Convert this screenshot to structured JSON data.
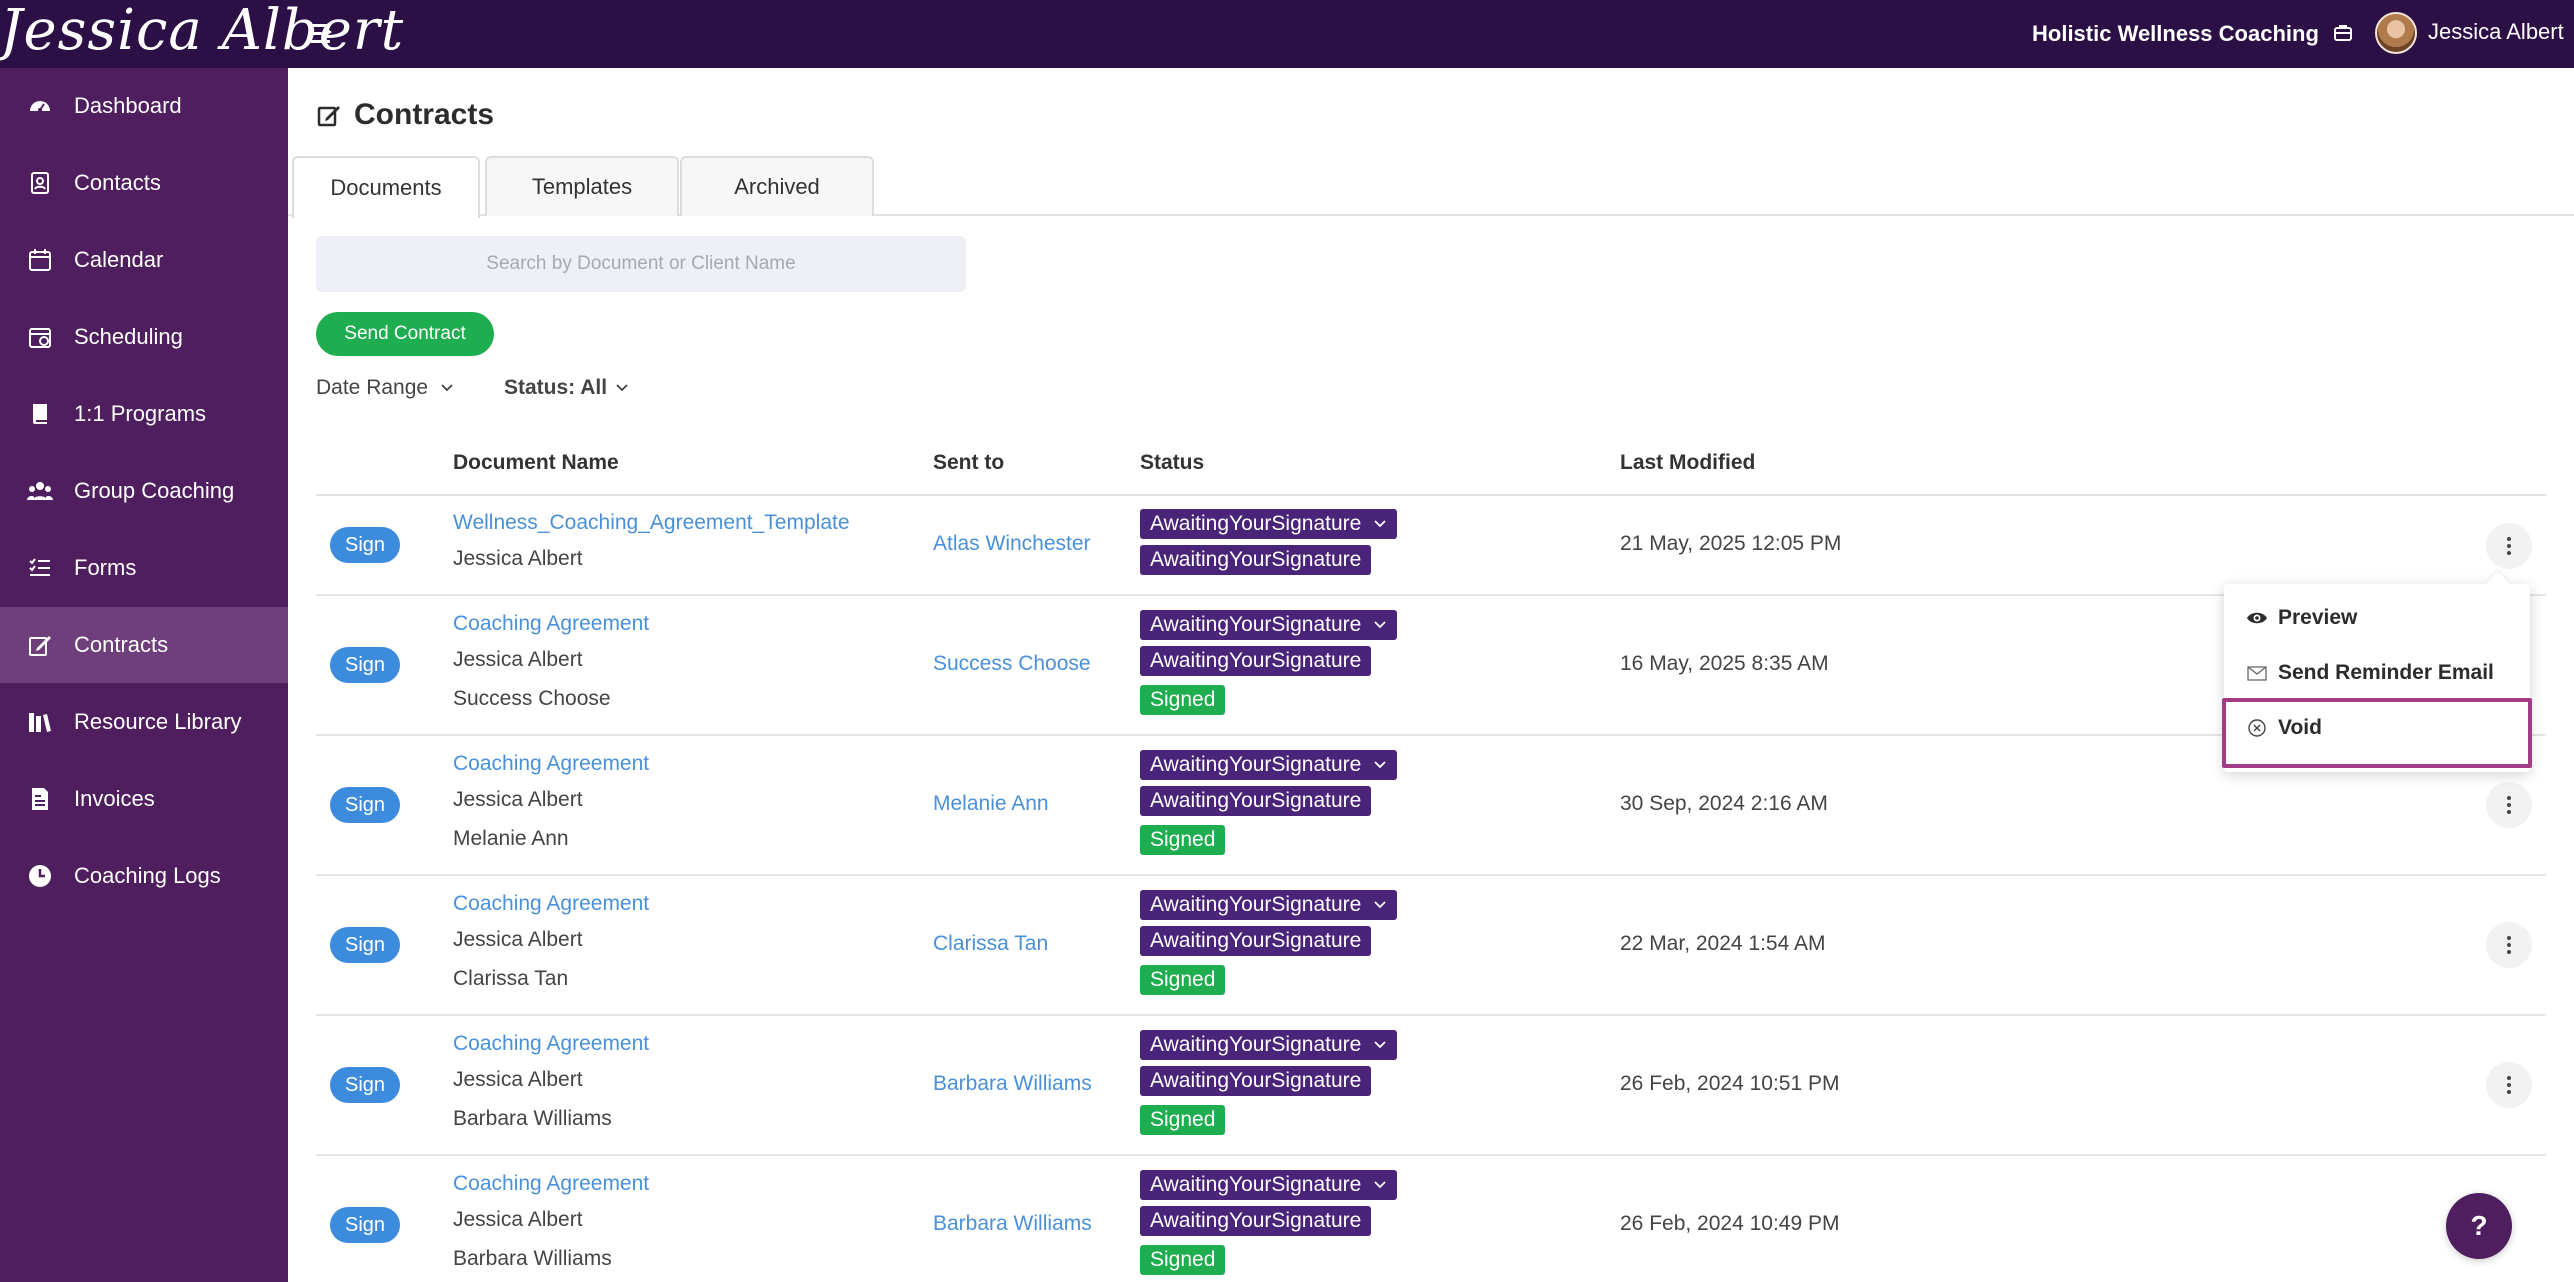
{
  "topbar": {
    "logo_text": "Jessica Albert",
    "business_name": "Holistic Wellness Coaching",
    "user_name": "Jessica Albert"
  },
  "sidebar": {
    "items": [
      {
        "label": "Dashboard",
        "icon": "dashboard-icon"
      },
      {
        "label": "Contacts",
        "icon": "contacts-icon"
      },
      {
        "label": "Calendar",
        "icon": "calendar-icon"
      },
      {
        "label": "Scheduling",
        "icon": "scheduling-icon"
      },
      {
        "label": "1:1 Programs",
        "icon": "programs-icon"
      },
      {
        "label": "Group Coaching",
        "icon": "group-icon"
      },
      {
        "label": "Forms",
        "icon": "forms-icon"
      },
      {
        "label": "Contracts",
        "icon": "contracts-icon",
        "active": true
      },
      {
        "label": "Resource Library",
        "icon": "library-icon"
      },
      {
        "label": "Invoices",
        "icon": "invoices-icon"
      },
      {
        "label": "Coaching Logs",
        "icon": "clock-icon"
      }
    ]
  },
  "page": {
    "title": "Contracts",
    "tabs": [
      "Documents",
      "Templates",
      "Archived"
    ],
    "active_tab": "Documents",
    "search_placeholder": "Search by Document or Client Name",
    "send_button": "Send Contract",
    "filters": {
      "date_range": "Date Range",
      "status": "Status: All"
    }
  },
  "table": {
    "headers": {
      "document": "Document Name",
      "sent_to": "Sent to",
      "status": "Status",
      "modified": "Last Modified"
    },
    "sign_label": "Sign",
    "rows": [
      {
        "doc": "Wellness_Coaching_Agreement_Template",
        "lines": [
          "Jessica Albert"
        ],
        "sent_to": "Atlas Winchester",
        "statuses": [
          "AwaitingYourSignature",
          "AwaitingYourSignature"
        ],
        "modified": "21 May, 2025 12:05 PM"
      },
      {
        "doc": "Coaching Agreement",
        "lines": [
          "Jessica Albert",
          "Success Choose"
        ],
        "sent_to": "Success Choose",
        "statuses": [
          "AwaitingYourSignature",
          "AwaitingYourSignature",
          "Signed"
        ],
        "modified": "16 May, 2025 8:35 AM"
      },
      {
        "doc": "Coaching Agreement",
        "lines": [
          "Jessica Albert",
          "Melanie Ann"
        ],
        "sent_to": "Melanie Ann",
        "statuses": [
          "AwaitingYourSignature",
          "AwaitingYourSignature",
          "Signed"
        ],
        "modified": "30 Sep, 2024 2:16 AM"
      },
      {
        "doc": "Coaching Agreement",
        "lines": [
          "Jessica Albert",
          "Clarissa Tan"
        ],
        "sent_to": "Clarissa Tan",
        "statuses": [
          "AwaitingYourSignature",
          "AwaitingYourSignature",
          "Signed"
        ],
        "modified": "22 Mar, 2024 1:54 AM"
      },
      {
        "doc": "Coaching Agreement",
        "lines": [
          "Jessica Albert",
          "Barbara Williams"
        ],
        "sent_to": "Barbara Williams",
        "statuses": [
          "AwaitingYourSignature",
          "AwaitingYourSignature",
          "Signed"
        ],
        "modified": "26 Feb, 2024 10:51 PM"
      },
      {
        "doc": "Coaching Agreement",
        "lines": [
          "Jessica Albert",
          "Barbara Williams"
        ],
        "sent_to": "Barbara Williams",
        "statuses": [
          "AwaitingYourSignature",
          "AwaitingYourSignature",
          "Signed"
        ],
        "modified": "26 Feb, 2024 10:49 PM"
      }
    ]
  },
  "menu": {
    "items": [
      {
        "label": "Preview",
        "icon": "eye-icon"
      },
      {
        "label": "Send Reminder Email",
        "icon": "envelope-icon"
      },
      {
        "label": "Void",
        "icon": "void-circle-icon",
        "highlighted": true
      }
    ]
  },
  "help_label": "?",
  "colors": {
    "topbar": "#2b0f45",
    "sidebar": "#4f1e5e",
    "sidebar_active": "#6e3f7b",
    "awaiting": "#4a2478",
    "signed": "#1eae50",
    "link": "#4a90d9",
    "highlight": "#a23c87"
  }
}
